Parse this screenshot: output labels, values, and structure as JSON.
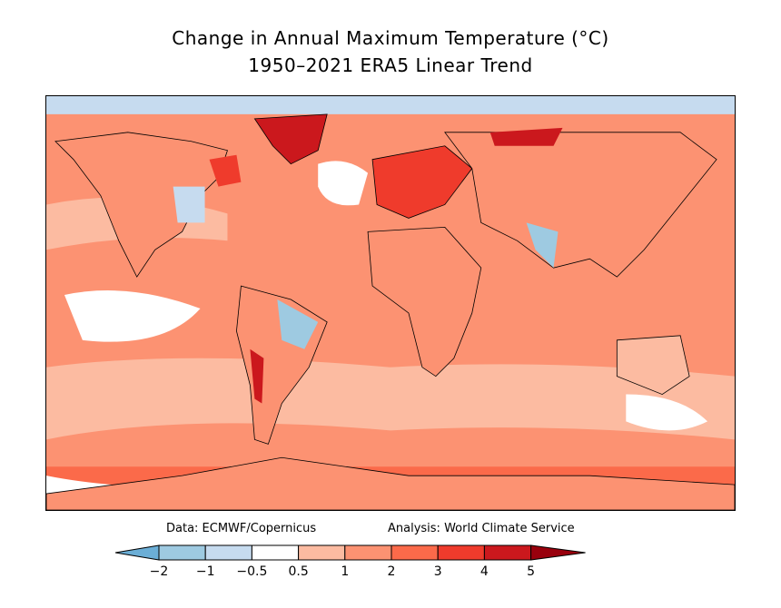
{
  "title": {
    "line1": "Change in Annual Maximum Temperature (°C)",
    "line2": "1950–2021 ERA5 Linear Trend"
  },
  "credits": {
    "data": "Data: ECMWF/Copernicus",
    "analysis": "Analysis: World Climate Service"
  },
  "colorbar": {
    "ticks": [
      "−2",
      "−1",
      "−0.5",
      "0.5",
      "1",
      "2",
      "3",
      "4",
      "5"
    ],
    "colors": [
      "#6baed6",
      "#9ecae1",
      "#c6dbef",
      "#ffffff",
      "#fcbba1",
      "#fc9272",
      "#fb6a4a",
      "#ef3b2c",
      "#cb181d",
      "#99000d"
    ]
  },
  "map": {
    "background_color": "#fc9272"
  }
}
